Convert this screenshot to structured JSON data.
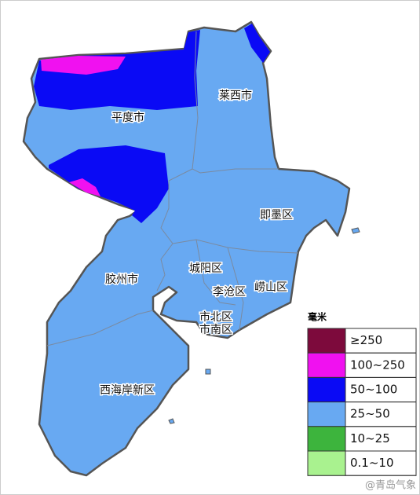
{
  "map": {
    "regions": [
      "平度市",
      "莱西市",
      "即墨区",
      "胶州市",
      "城阳区",
      "崂山区",
      "李沧区",
      "市北区",
      "市南区",
      "西海岸新区"
    ],
    "legend": {
      "title": "毫米",
      "items": [
        {
          "label": "≥250",
          "color": "#7d0a3c"
        },
        {
          "label": "100~250",
          "color": "#f011f0"
        },
        {
          "label": "50~100",
          "color": "#0a0af5"
        },
        {
          "label": "25~50",
          "color": "#68a9f2"
        },
        {
          "label": "10~25",
          "color": "#3db43d"
        },
        {
          "label": "0.1~10",
          "color": "#a9f28f"
        }
      ]
    },
    "watermark": "@青岛气象"
  }
}
